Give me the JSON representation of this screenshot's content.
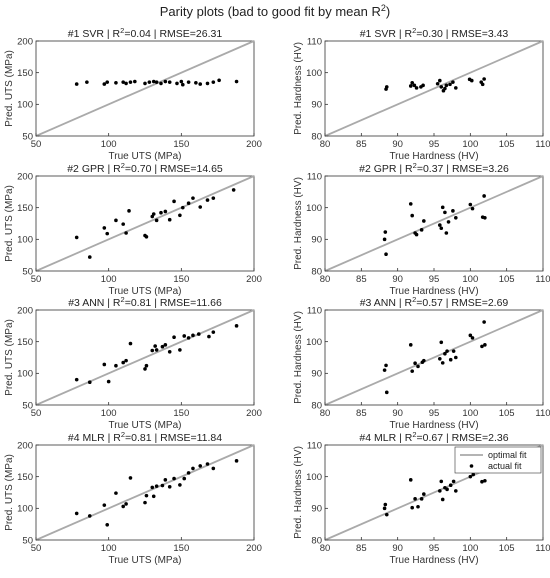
{
  "figure": {
    "title_main": "Parity plots (bad to good fit by mean R",
    "title_sup": "2",
    "title_end": ")"
  },
  "legend": {
    "optimal_label": "optimal fit",
    "actual_label": "actual fit"
  },
  "colors": {
    "optimal_line": "#aaaaaa",
    "points": "#000000",
    "axes": "#333333"
  },
  "chart_data": [
    {
      "type": "scatter",
      "title_prefix": "#1 SVR | R",
      "title_sup": "2",
      "title_suffix": "=0.04 | RMSE=26.31",
      "xlabel": "True UTS (MPa)",
      "ylabel": "Pred. UTS (MPa)",
      "xlim": [
        50,
        200
      ],
      "ylim": [
        50,
        200
      ],
      "xticks": [
        50,
        100,
        150,
        200
      ],
      "yticks": [
        50,
        100,
        150,
        200
      ],
      "grid": false,
      "optimal_line": true,
      "points": [
        [
          78,
          132
        ],
        [
          85,
          135
        ],
        [
          97,
          132
        ],
        [
          99,
          135
        ],
        [
          105,
          134
        ],
        [
          110,
          135
        ],
        [
          112,
          133
        ],
        [
          115,
          135
        ],
        [
          118,
          136
        ],
        [
          125,
          133
        ],
        [
          128,
          135
        ],
        [
          131,
          136
        ],
        [
          133,
          135
        ],
        [
          136,
          133
        ],
        [
          139,
          136
        ],
        [
          142,
          135
        ],
        [
          147,
          133
        ],
        [
          150,
          136
        ],
        [
          151,
          131
        ],
        [
          155,
          135
        ],
        [
          160,
          134
        ],
        [
          163,
          132
        ],
        [
          168,
          133
        ],
        [
          172,
          135
        ],
        [
          176,
          138
        ],
        [
          188,
          136
        ]
      ]
    },
    {
      "type": "scatter",
      "title_prefix": "#1 SVR | R",
      "title_sup": "2",
      "title_suffix": "=0.30 | RMSE=3.43",
      "xlabel": "True Hardness (HV)",
      "ylabel": "Pred. Hardness (HV)",
      "xlim": [
        80,
        110
      ],
      "ylim": [
        80,
        110
      ],
      "xticks": [
        80,
        85,
        90,
        95,
        100,
        105,
        110
      ],
      "yticks": [
        80,
        90,
        100,
        110
      ],
      "grid": false,
      "optimal_line": true,
      "points": [
        [
          88.4,
          94.8
        ],
        [
          88.5,
          95.5
        ],
        [
          91.8,
          95.8
        ],
        [
          92.0,
          96.8
        ],
        [
          92.3,
          96.0
        ],
        [
          92.6,
          95.2
        ],
        [
          93.2,
          95.5
        ],
        [
          93.5,
          96.0
        ],
        [
          95.5,
          96.5
        ],
        [
          95.8,
          97.5
        ],
        [
          96.0,
          95.5
        ],
        [
          96.3,
          94.3
        ],
        [
          96.5,
          95.0
        ],
        [
          96.7,
          96.0
        ],
        [
          97.2,
          96.3
        ],
        [
          97.6,
          97.0
        ],
        [
          98.0,
          95.2
        ],
        [
          99.9,
          97.9
        ],
        [
          100.2,
          97.5
        ],
        [
          101.5,
          97.0
        ],
        [
          101.7,
          96.3
        ],
        [
          101.9,
          98.0
        ]
      ]
    },
    {
      "type": "scatter",
      "title_prefix": "#2 GPR | R",
      "title_sup": "2",
      "title_suffix": "=0.70 | RMSE=14.65",
      "xlabel": "True UTS (MPa)",
      "ylabel": "Pred. UTS (MPa)",
      "xlim": [
        50,
        200
      ],
      "ylim": [
        50,
        200
      ],
      "xticks": [
        50,
        100,
        150,
        200
      ],
      "yticks": [
        50,
        100,
        150,
        200
      ],
      "grid": false,
      "optimal_line": true,
      "points": [
        [
          78,
          103
        ],
        [
          87,
          72
        ],
        [
          97,
          118
        ],
        [
          99,
          109
        ],
        [
          105,
          130
        ],
        [
          110,
          124
        ],
        [
          112,
          110
        ],
        [
          114,
          145
        ],
        [
          125,
          106
        ],
        [
          126,
          104
        ],
        [
          130,
          136
        ],
        [
          131,
          140
        ],
        [
          133,
          130
        ],
        [
          136,
          142
        ],
        [
          139,
          144
        ],
        [
          142,
          131
        ],
        [
          145,
          160
        ],
        [
          149,
          138
        ],
        [
          151,
          150
        ],
        [
          155,
          157
        ],
        [
          158,
          165
        ],
        [
          163,
          151
        ],
        [
          168,
          162
        ],
        [
          172,
          165
        ],
        [
          186,
          178
        ]
      ]
    },
    {
      "type": "scatter",
      "title_prefix": "#2 GPR | R",
      "title_sup": "2",
      "title_suffix": "=0.37 | RMSE=3.26",
      "xlabel": "True Hardness (HV)",
      "ylabel": "Pred. Hardness (HV)",
      "xlim": [
        80,
        110
      ],
      "ylim": [
        80,
        110
      ],
      "xticks": [
        80,
        85,
        90,
        95,
        100,
        105,
        110
      ],
      "yticks": [
        80,
        90,
        100,
        110
      ],
      "grid": false,
      "optimal_line": true,
      "points": [
        [
          88.2,
          90.0
        ],
        [
          88.3,
          92.3
        ],
        [
          88.4,
          85.3
        ],
        [
          91.8,
          101.2
        ],
        [
          92.0,
          97.5
        ],
        [
          92.4,
          92.0
        ],
        [
          92.6,
          91.5
        ],
        [
          93.3,
          93.0
        ],
        [
          93.6,
          95.8
        ],
        [
          95.8,
          94.5
        ],
        [
          96.0,
          93.5
        ],
        [
          96.2,
          100.1
        ],
        [
          96.5,
          98.5
        ],
        [
          96.7,
          92.0
        ],
        [
          97.0,
          95.5
        ],
        [
          97.6,
          99.0
        ],
        [
          98.0,
          96.8
        ],
        [
          100.0,
          101.0
        ],
        [
          100.3,
          99.7
        ],
        [
          101.7,
          97.0
        ],
        [
          101.9,
          103.7
        ],
        [
          102.0,
          96.8
        ]
      ]
    },
    {
      "type": "scatter",
      "title_prefix": "#3 ANN | R",
      "title_sup": "2",
      "title_suffix": "=0.81 | RMSE=11.66",
      "xlabel": "True UTS (MPa)",
      "ylabel": "Pred. UTS (MPa)",
      "xlim": [
        50,
        200
      ],
      "ylim": [
        50,
        200
      ],
      "xticks": [
        50,
        100,
        150,
        200
      ],
      "yticks": [
        50,
        100,
        150,
        200
      ],
      "grid": false,
      "optimal_line": true,
      "points": [
        [
          78,
          90
        ],
        [
          87,
          86
        ],
        [
          97,
          114
        ],
        [
          100,
          87
        ],
        [
          105,
          112
        ],
        [
          110,
          117
        ],
        [
          112,
          120
        ],
        [
          115,
          147
        ],
        [
          125,
          107
        ],
        [
          126,
          112
        ],
        [
          130,
          136
        ],
        [
          132,
          143
        ],
        [
          133,
          137
        ],
        [
          137,
          142
        ],
        [
          139,
          145
        ],
        [
          142,
          134
        ],
        [
          145,
          157
        ],
        [
          149,
          137
        ],
        [
          152,
          159
        ],
        [
          155,
          156
        ],
        [
          158,
          160
        ],
        [
          162,
          162
        ],
        [
          169,
          158
        ],
        [
          172,
          165
        ],
        [
          188,
          175
        ]
      ]
    },
    {
      "type": "scatter",
      "title_prefix": "#3 ANN | R",
      "title_sup": "2",
      "title_suffix": "=0.57 | RMSE=2.69",
      "xlabel": "True Hardness (HV)",
      "ylabel": "Pred. Hardness (HV)",
      "xlim": [
        80,
        110
      ],
      "ylim": [
        80,
        110
      ],
      "xticks": [
        80,
        85,
        90,
        95,
        100,
        105,
        110
      ],
      "yticks": [
        80,
        90,
        100,
        110
      ],
      "grid": false,
      "optimal_line": true,
      "points": [
        [
          88.2,
          91.0
        ],
        [
          88.4,
          92.5
        ],
        [
          88.5,
          84.0
        ],
        [
          91.8,
          99.0
        ],
        [
          92.0,
          90.7
        ],
        [
          92.4,
          93.2
        ],
        [
          92.8,
          92.2
        ],
        [
          93.4,
          93.5
        ],
        [
          93.6,
          94.0
        ],
        [
          95.8,
          94.6
        ],
        [
          96.0,
          99.8
        ],
        [
          96.2,
          93.3
        ],
        [
          96.5,
          96.2
        ],
        [
          96.8,
          97.0
        ],
        [
          97.3,
          94.3
        ],
        [
          97.7,
          97.0
        ],
        [
          98.0,
          95.0
        ],
        [
          100.0,
          102.0
        ],
        [
          100.3,
          101.2
        ],
        [
          101.6,
          98.5
        ],
        [
          101.9,
          106.2
        ],
        [
          102.0,
          99.0
        ]
      ]
    },
    {
      "type": "scatter",
      "title_prefix": "#4 MLR | R",
      "title_sup": "2",
      "title_suffix": "=0.81 | RMSE=11.84",
      "xlabel": "True UTS (MPa)",
      "ylabel": "Pred. UTS (MPa)",
      "xlim": [
        50,
        200
      ],
      "ylim": [
        50,
        200
      ],
      "xticks": [
        50,
        100,
        150,
        200
      ],
      "yticks": [
        50,
        100,
        150,
        200
      ],
      "grid": false,
      "optimal_line": true,
      "points": [
        [
          78,
          92
        ],
        [
          87,
          88
        ],
        [
          97,
          105
        ],
        [
          99,
          74
        ],
        [
          105,
          124
        ],
        [
          110,
          103
        ],
        [
          112,
          107
        ],
        [
          115,
          148
        ],
        [
          125,
          109
        ],
        [
          126,
          120
        ],
        [
          130,
          133
        ],
        [
          131,
          119
        ],
        [
          133,
          135
        ],
        [
          137,
          136
        ],
        [
          139,
          145
        ],
        [
          142,
          134
        ],
        [
          145,
          147
        ],
        [
          149,
          137
        ],
        [
          152,
          147
        ],
        [
          155,
          156
        ],
        [
          158,
          163
        ],
        [
          163,
          167
        ],
        [
          168,
          170
        ],
        [
          172,
          163
        ],
        [
          188,
          175
        ]
      ]
    },
    {
      "type": "scatter",
      "title_prefix": "#4 MLR | R",
      "title_sup": "2",
      "title_suffix": "=0.67 | RMSE=2.36",
      "xlabel": "True Hardness (HV)",
      "ylabel": "Pred. Hardness (HV)",
      "xlim": [
        80,
        110
      ],
      "ylim": [
        80,
        110
      ],
      "xticks": [
        80,
        85,
        90,
        95,
        100,
        105,
        110
      ],
      "yticks": [
        80,
        90,
        100,
        110
      ],
      "grid": false,
      "optimal_line": true,
      "legend": "top-right",
      "points": [
        [
          88.2,
          90.0
        ],
        [
          88.3,
          91.2
        ],
        [
          88.5,
          88.0
        ],
        [
          91.8,
          99.0
        ],
        [
          92.0,
          90.2
        ],
        [
          92.4,
          93.0
        ],
        [
          92.8,
          90.5
        ],
        [
          93.3,
          93.0
        ],
        [
          93.6,
          94.5
        ],
        [
          95.8,
          95.5
        ],
        [
          96.0,
          98.5
        ],
        [
          96.2,
          92.8
        ],
        [
          96.5,
          96.5
        ],
        [
          96.8,
          96.0
        ],
        [
          97.3,
          97.3
        ],
        [
          97.7,
          98.5
        ],
        [
          98.0,
          95.5
        ],
        [
          100.0,
          100.0
        ],
        [
          100.4,
          100.7
        ],
        [
          101.6,
          98.4
        ],
        [
          101.9,
          104.0
        ],
        [
          102.0,
          98.7
        ]
      ]
    }
  ]
}
